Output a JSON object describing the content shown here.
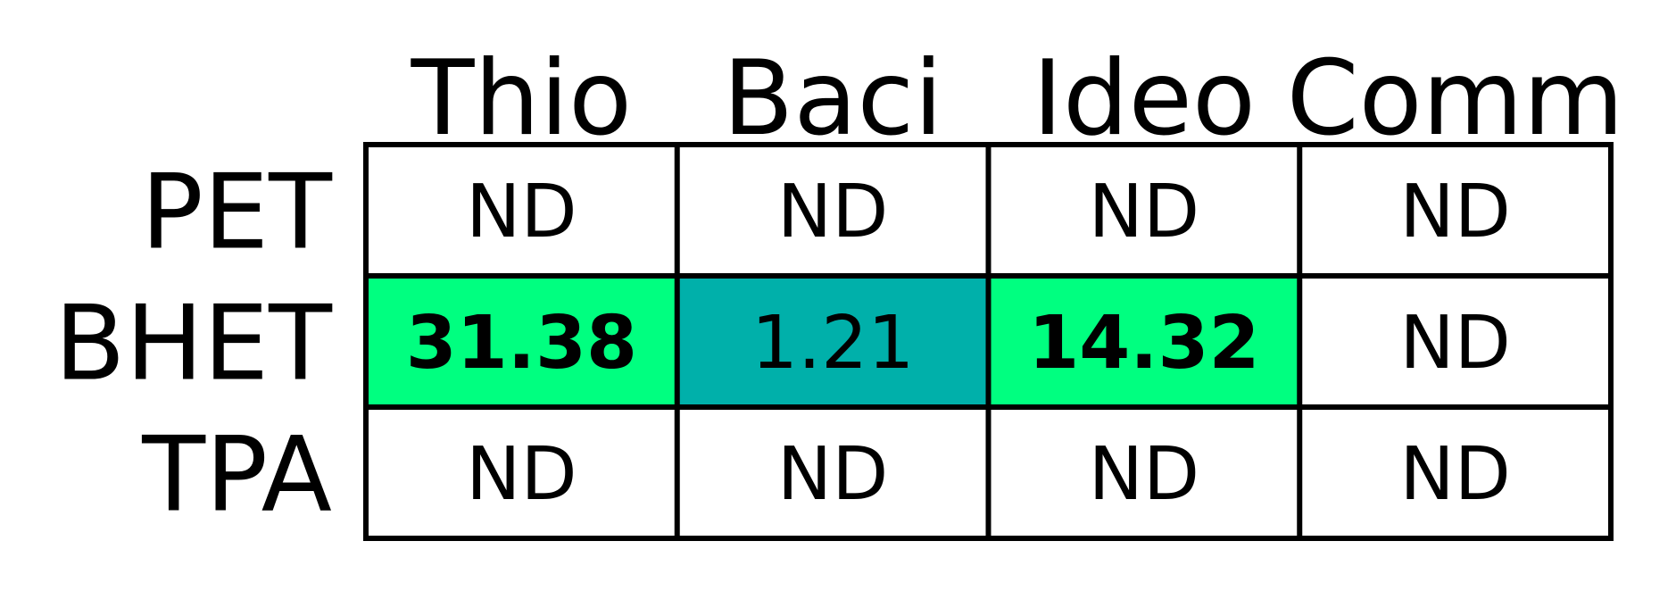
{
  "chart_data": {
    "type": "heatmap",
    "columns": [
      "Thio",
      "Baci",
      "Ideo",
      "Comm"
    ],
    "rows": [
      "PET",
      "BHET",
      "TPA"
    ],
    "cells": [
      [
        {
          "text": "ND",
          "value": null,
          "bold": false,
          "fill": "#ffffff"
        },
        {
          "text": "ND",
          "value": null,
          "bold": false,
          "fill": "#ffffff"
        },
        {
          "text": "ND",
          "value": null,
          "bold": false,
          "fill": "#ffffff"
        },
        {
          "text": "ND",
          "value": null,
          "bold": false,
          "fill": "#ffffff"
        }
      ],
      [
        {
          "text": "31.38",
          "value": 31.38,
          "bold": true,
          "fill": "#00ff80"
        },
        {
          "text": "1.21",
          "value": 1.21,
          "bold": false,
          "fill": "#00b0aa"
        },
        {
          "text": "14.32",
          "value": 14.32,
          "bold": true,
          "fill": "#00ff80"
        },
        {
          "text": "ND",
          "value": null,
          "bold": false,
          "fill": "#ffffff"
        }
      ],
      [
        {
          "text": "ND",
          "value": null,
          "bold": false,
          "fill": "#ffffff"
        },
        {
          "text": "ND",
          "value": null,
          "bold": false,
          "fill": "#ffffff"
        },
        {
          "text": "ND",
          "value": null,
          "bold": false,
          "fill": "#ffffff"
        },
        {
          "text": "ND",
          "value": null,
          "bold": false,
          "fill": "#ffffff"
        }
      ]
    ],
    "grid_color": "#000000",
    "text_color": "#000000"
  }
}
